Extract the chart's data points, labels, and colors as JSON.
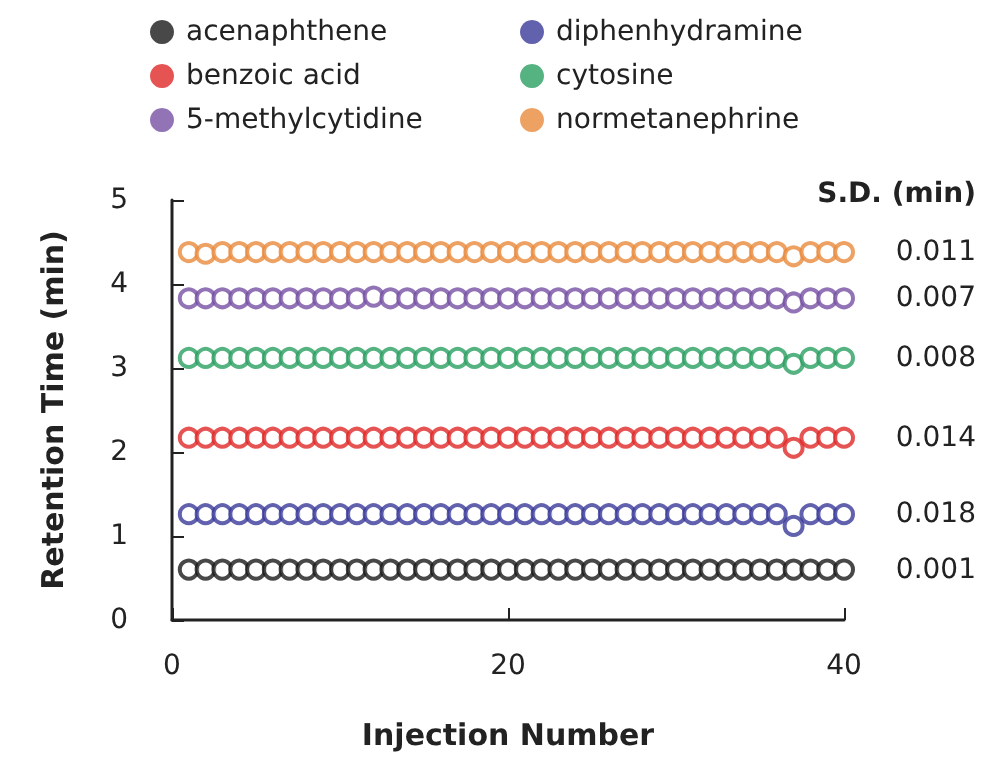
{
  "chart_data": {
    "type": "scatter",
    "xlabel": "Injection Number",
    "ylabel": "Retention Time (min)",
    "x": [
      1,
      2,
      3,
      4,
      5,
      6,
      7,
      8,
      9,
      10,
      11,
      12,
      13,
      14,
      15,
      16,
      17,
      18,
      19,
      20,
      21,
      22,
      23,
      24,
      25,
      26,
      27,
      28,
      29,
      30,
      31,
      32,
      33,
      34,
      35,
      36,
      37,
      38,
      39,
      40
    ],
    "series": [
      {
        "name": "acenaphthene",
        "color": "#1a1a1a",
        "values": [
          0.6,
          0.6,
          0.6,
          0.6,
          0.6,
          0.6,
          0.6,
          0.6,
          0.6,
          0.6,
          0.6,
          0.6,
          0.6,
          0.6,
          0.6,
          0.6,
          0.6,
          0.6,
          0.6,
          0.6,
          0.6,
          0.6,
          0.6,
          0.6,
          0.6,
          0.6,
          0.6,
          0.6,
          0.6,
          0.6,
          0.6,
          0.6,
          0.6,
          0.6,
          0.6,
          0.6,
          0.6,
          0.6,
          0.6,
          0.6
        ]
      },
      {
        "name": "diphenhydramine",
        "color": "#3a3a9a",
        "values": [
          1.26,
          1.26,
          1.26,
          1.26,
          1.26,
          1.26,
          1.26,
          1.26,
          1.26,
          1.26,
          1.26,
          1.26,
          1.26,
          1.26,
          1.26,
          1.26,
          1.26,
          1.26,
          1.26,
          1.26,
          1.26,
          1.26,
          1.26,
          1.26,
          1.26,
          1.26,
          1.26,
          1.26,
          1.26,
          1.26,
          1.26,
          1.26,
          1.26,
          1.26,
          1.26,
          1.26,
          1.12,
          1.26,
          1.26,
          1.26
        ]
      },
      {
        "name": "benzoic acid",
        "color": "#e02828",
        "values": [
          2.17,
          2.17,
          2.17,
          2.17,
          2.17,
          2.17,
          2.17,
          2.17,
          2.17,
          2.17,
          2.17,
          2.17,
          2.17,
          2.17,
          2.17,
          2.17,
          2.17,
          2.17,
          2.17,
          2.17,
          2.17,
          2.17,
          2.17,
          2.17,
          2.17,
          2.17,
          2.17,
          2.17,
          2.17,
          2.17,
          2.17,
          2.17,
          2.17,
          2.17,
          2.17,
          2.17,
          2.05,
          2.17,
          2.17,
          2.17
        ]
      },
      {
        "name": "cytosine",
        "color": "#2a9f62",
        "values": [
          3.12,
          3.12,
          3.12,
          3.12,
          3.12,
          3.12,
          3.12,
          3.12,
          3.12,
          3.12,
          3.12,
          3.12,
          3.12,
          3.12,
          3.12,
          3.12,
          3.12,
          3.12,
          3.12,
          3.12,
          3.12,
          3.12,
          3.12,
          3.12,
          3.12,
          3.12,
          3.12,
          3.12,
          3.12,
          3.12,
          3.12,
          3.12,
          3.12,
          3.12,
          3.12,
          3.12,
          3.05,
          3.12,
          3.12,
          3.12
        ]
      },
      {
        "name": "5-methylcytidine",
        "color": "#7650a4",
        "values": [
          3.83,
          3.83,
          3.83,
          3.83,
          3.83,
          3.83,
          3.83,
          3.83,
          3.83,
          3.83,
          3.83,
          3.85,
          3.83,
          3.83,
          3.83,
          3.83,
          3.83,
          3.83,
          3.83,
          3.83,
          3.83,
          3.83,
          3.83,
          3.83,
          3.83,
          3.83,
          3.83,
          3.83,
          3.83,
          3.83,
          3.83,
          3.83,
          3.83,
          3.83,
          3.83,
          3.83,
          3.78,
          3.83,
          3.83,
          3.83
        ]
      },
      {
        "name": "normetanephrine",
        "color": "#e88a3c",
        "values": [
          4.38,
          4.36,
          4.38,
          4.38,
          4.38,
          4.38,
          4.38,
          4.38,
          4.38,
          4.38,
          4.38,
          4.38,
          4.38,
          4.38,
          4.38,
          4.38,
          4.38,
          4.38,
          4.38,
          4.38,
          4.38,
          4.38,
          4.38,
          4.38,
          4.38,
          4.38,
          4.38,
          4.38,
          4.38,
          4.38,
          4.38,
          4.38,
          4.38,
          4.38,
          4.38,
          4.38,
          4.33,
          4.38,
          4.38,
          4.38
        ]
      }
    ],
    "xlim": [
      0,
      40
    ],
    "xticks": [
      0,
      20,
      40
    ],
    "ylim": [
      0,
      5
    ],
    "yticks": [
      0,
      1,
      2,
      3,
      4,
      5
    ],
    "grid": false,
    "legend": "top",
    "marker": "circle",
    "annotations": [
      "S.D. (min)",
      "0.001",
      "0.018",
      "0.014",
      "0.008",
      "0.007",
      "0.011"
    ]
  }
}
